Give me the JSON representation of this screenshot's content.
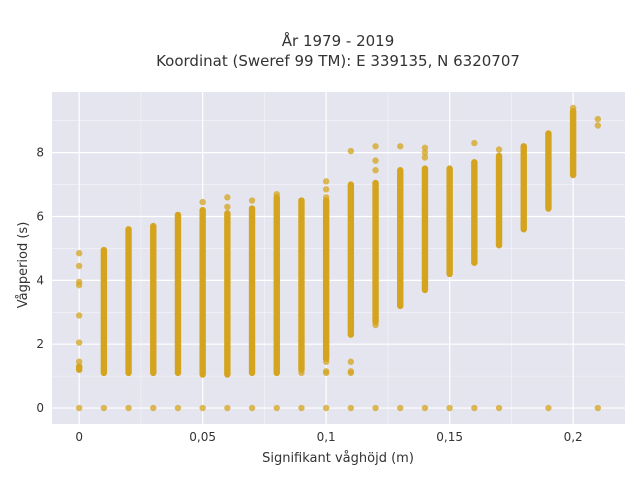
{
  "chart_data": {
    "type": "scatter",
    "title_line1": "År 1979 - 2019",
    "title_line2": "Koordinat (Sweref 99 TM): E 339135, N 6320707",
    "xlabel": "Signifikant våghöjd (m)",
    "ylabel": "Vågperiod (s)",
    "xlim": [
      -0.011,
      0.221
    ],
    "ylim": [
      -0.5,
      9.9
    ],
    "grid": true,
    "legend": "none",
    "x_ticks": [
      0,
      0.05,
      0.1,
      0.15,
      0.2
    ],
    "x_tick_labels": [
      "0",
      "0,05",
      "0,1",
      "0,15",
      "0,2"
    ],
    "y_ticks": [
      0,
      2,
      4,
      6,
      8
    ],
    "y_tick_labels": [
      "0",
      "2",
      "4",
      "6",
      "8"
    ],
    "colors": {
      "point": "#d4a41e",
      "plot_bg": "#e5e5ef",
      "grid": "#ffffff"
    },
    "columns": [
      {
        "x": 0.0,
        "ymin": 1.2,
        "ymax": 1.3,
        "extra": [
          1.45,
          2.05,
          2.9,
          3.85,
          3.95,
          4.45,
          4.85,
          0
        ]
      },
      {
        "x": 0.01,
        "ymin": 1.1,
        "ymax": 4.95,
        "extra": [
          0
        ]
      },
      {
        "x": 0.02,
        "ymin": 1.1,
        "ymax": 5.6,
        "extra": [
          0
        ]
      },
      {
        "x": 0.03,
        "ymin": 1.1,
        "ymax": 5.7,
        "extra": [
          0
        ]
      },
      {
        "x": 0.04,
        "ymin": 1.1,
        "ymax": 6.05,
        "extra": [
          0
        ]
      },
      {
        "x": 0.05,
        "ymin": 1.05,
        "ymax": 6.2,
        "extra": [
          6.45,
          0
        ]
      },
      {
        "x": 0.06,
        "ymin": 1.05,
        "ymax": 6.1,
        "extra": [
          6.3,
          6.6,
          0
        ]
      },
      {
        "x": 0.07,
        "ymin": 1.1,
        "ymax": 6.25,
        "extra": [
          6.5,
          0
        ]
      },
      {
        "x": 0.08,
        "ymin": 1.1,
        "ymax": 6.6,
        "extra": [
          6.7,
          0
        ]
      },
      {
        "x": 0.09,
        "ymin": 1.2,
        "ymax": 6.5,
        "extra": [
          1.1,
          1.45,
          0
        ]
      },
      {
        "x": 0.1,
        "ymin": 1.55,
        "ymax": 6.5,
        "extra": [
          1.1,
          1.15,
          1.45,
          6.6,
          6.85,
          7.1,
          0
        ]
      },
      {
        "x": 0.11,
        "ymin": 2.3,
        "ymax": 7.0,
        "extra": [
          1.1,
          1.15,
          1.45,
          8.05,
          0
        ]
      },
      {
        "x": 0.12,
        "ymin": 2.7,
        "ymax": 7.05,
        "extra": [
          2.6,
          7.45,
          7.75,
          8.2,
          0
        ]
      },
      {
        "x": 0.13,
        "ymin": 3.2,
        "ymax": 7.45,
        "extra": [
          8.2,
          0
        ]
      },
      {
        "x": 0.14,
        "ymin": 3.7,
        "ymax": 7.5,
        "extra": [
          7.85,
          8.0,
          8.15,
          0
        ]
      },
      {
        "x": 0.15,
        "ymin": 4.2,
        "ymax": 7.5,
        "extra": [
          0
        ]
      },
      {
        "x": 0.16,
        "ymin": 4.55,
        "ymax": 7.7,
        "extra": [
          8.3,
          0
        ]
      },
      {
        "x": 0.17,
        "ymin": 5.1,
        "ymax": 7.9,
        "extra": [
          8.1,
          0
        ]
      },
      {
        "x": 0.18,
        "ymin": 5.6,
        "ymax": 8.2,
        "extra": []
      },
      {
        "x": 0.19,
        "ymin": 6.25,
        "ymax": 8.6,
        "extra": [
          0
        ]
      },
      {
        "x": 0.2,
        "ymin": 7.3,
        "ymax": 9.3,
        "extra": [
          9.4
        ]
      },
      {
        "x": 0.21,
        "ymin": null,
        "ymax": null,
        "extra": [
          8.85,
          9.05,
          0
        ]
      }
    ]
  }
}
